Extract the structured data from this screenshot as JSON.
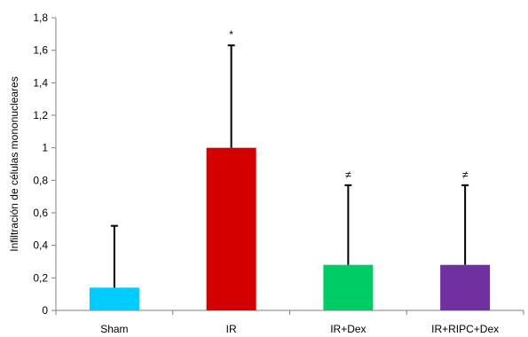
{
  "chart_data": {
    "type": "bar",
    "title": "",
    "xlabel": "",
    "ylabel": "Infiltración de células mononucleares",
    "categories": [
      "Sham",
      "IR",
      "IR+Dex",
      "IR+RIPC+Dex"
    ],
    "values": [
      0.14,
      1.0,
      0.28,
      0.28
    ],
    "error_upper": [
      0.52,
      1.63,
      0.77,
      0.77
    ],
    "annotations": [
      "",
      "*",
      "≠",
      "≠"
    ],
    "colors": [
      "#00CCFF",
      "#D40000",
      "#00CC66",
      "#7030A0"
    ],
    "ylim": [
      0,
      1.8
    ],
    "yticks": [
      "0",
      "0,2",
      "0,4",
      "0,6",
      "0,8",
      "1",
      "1,2",
      "1,4",
      "1,6",
      "1,8"
    ],
    "grid": false,
    "legend": "none"
  }
}
